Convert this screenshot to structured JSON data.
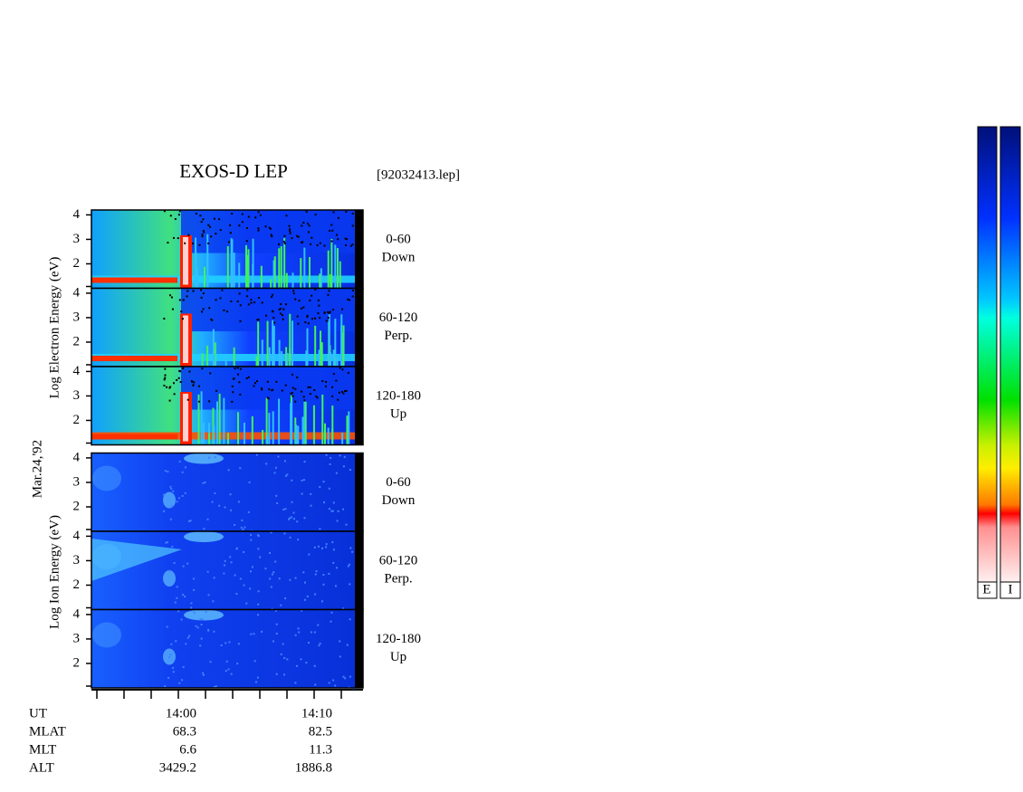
{
  "header": {
    "title": "EXOS-D LEP",
    "file": "[92032413.lep]"
  },
  "date": "Mar.24,'92",
  "electron": {
    "axis_label": "Log Electron Energy (eV)",
    "ylim": [
      1,
      4.2
    ],
    "yticks": [
      2,
      3,
      4
    ],
    "panels": [
      {
        "angle": "0-60",
        "direction": "Down"
      },
      {
        "angle": "60-120",
        "direction": "Perp."
      },
      {
        "angle": "120-180",
        "direction": "Up"
      }
    ]
  },
  "ion": {
    "axis_label": "Log Ion Energy (eV)",
    "ylim": [
      1,
      4.2
    ],
    "yticks": [
      2,
      3,
      4
    ],
    "panels": [
      {
        "angle": "0-60",
        "direction": "Down"
      },
      {
        "angle": "60-120",
        "direction": "Perp."
      },
      {
        "angle": "120-180",
        "direction": "Up"
      }
    ]
  },
  "ephemeris": {
    "rows": [
      {
        "label": "UT",
        "values": [
          "14:00",
          "14:10"
        ]
      },
      {
        "label": "MLAT",
        "values": [
          68.3,
          82.5
        ]
      },
      {
        "label": "MLT",
        "values": [
          6.6,
          11.3
        ]
      },
      {
        "label": "ALT",
        "values": [
          3429.2,
          1886.8
        ]
      }
    ]
  },
  "colorbar": {
    "labels": [
      "E",
      "I"
    ]
  }
}
